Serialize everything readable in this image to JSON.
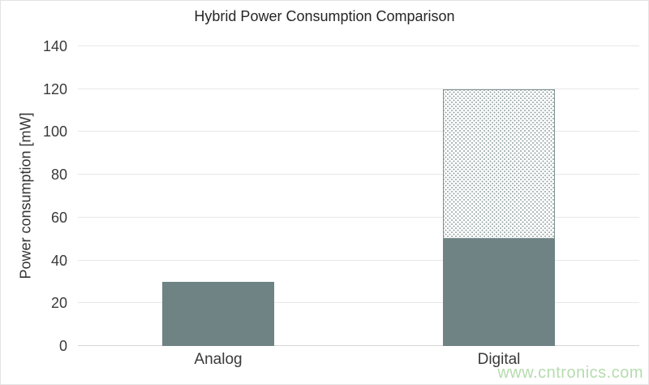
{
  "title": "Hybrid Power Consumption Comparison",
  "watermark": "www.cntronics.com",
  "chart_data": {
    "type": "bar",
    "stacked": true,
    "title": "Hybrid Power Consumption Comparison",
    "xlabel": "",
    "ylabel": "Power consumption [mW]",
    "ylim": [
      0,
      140
    ],
    "yticks": [
      0,
      20,
      40,
      60,
      80,
      100,
      120,
      140
    ],
    "grid": true,
    "legend": "none",
    "categories": [
      "Analog",
      "Digital"
    ],
    "series": [
      {
        "name": "solid-fill",
        "style": "solid",
        "values": [
          30,
          50
        ],
        "color": "#6F8384"
      },
      {
        "name": "dotted-fill",
        "style": "dotted",
        "values": [
          0,
          70
        ],
        "fill": "#FFFFFF",
        "dot_color": "#93A3A3",
        "border_color": "#7F9192"
      }
    ],
    "totals": [
      30,
      120
    ]
  },
  "colors": {
    "background": "#FFFFFF",
    "gridline": "#E7E7E7",
    "axis_line": "#D6D6D6",
    "text": "#333333",
    "bar_solid": "#6F8384",
    "watermark_green": "#B5DCAE"
  }
}
